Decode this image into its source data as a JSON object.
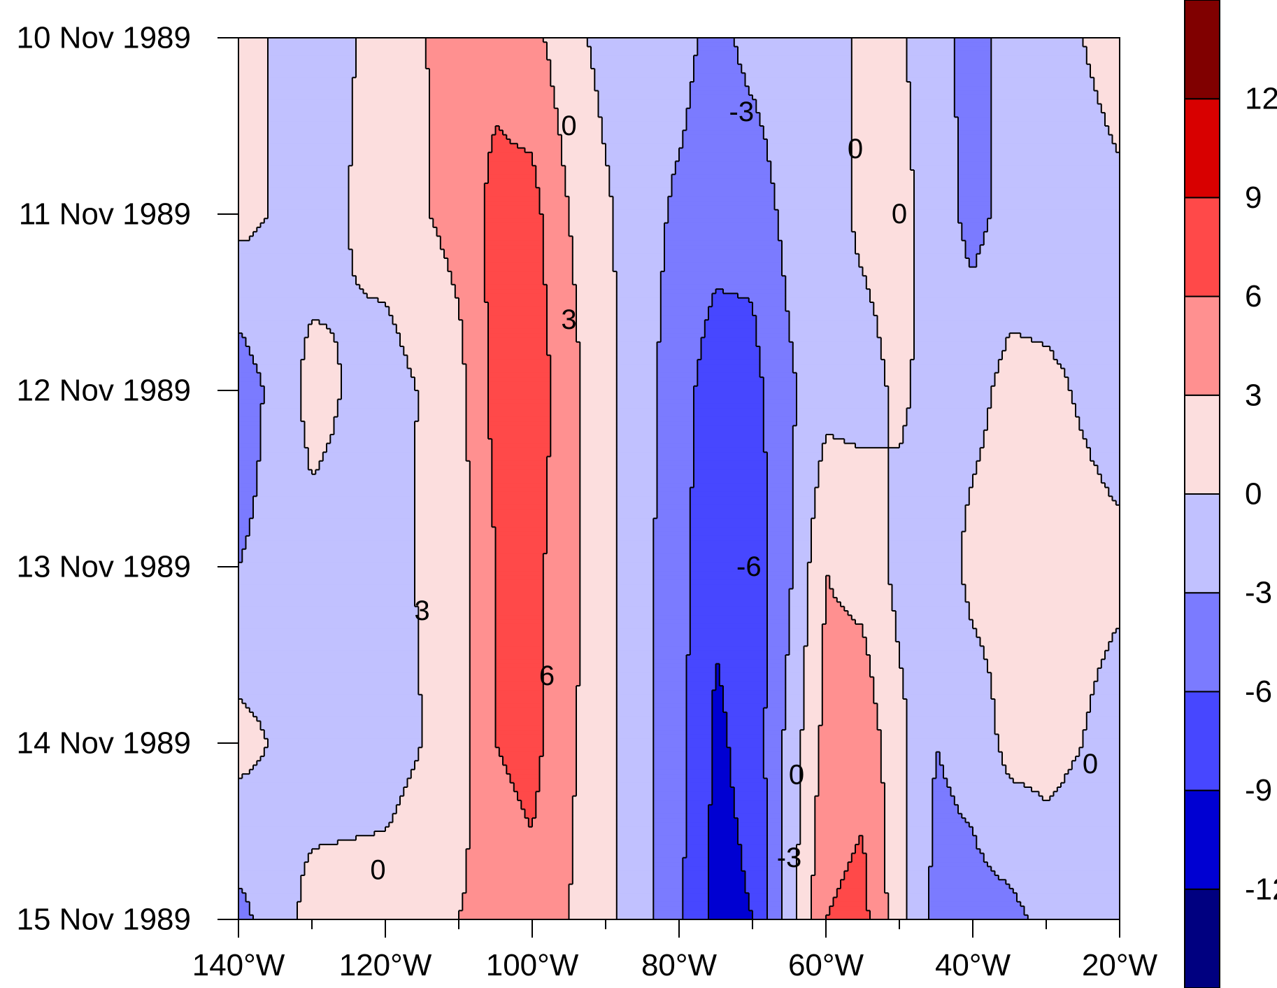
{
  "chart_data": {
    "type": "heatmap",
    "title": "",
    "xlabel": "",
    "ylabel": "",
    "x_axis": {
      "range": [
        -140,
        -20
      ],
      "ticks": [
        {
          "value": -140,
          "label": "140°W"
        },
        {
          "value": -120,
          "label": "120°W"
        },
        {
          "value": -100,
          "label": "100°W"
        },
        {
          "value": -80,
          "label": "80°W"
        },
        {
          "value": -60,
          "label": "60°W"
        },
        {
          "value": -40,
          "label": "40°W"
        },
        {
          "value": -20,
          "label": "20°W"
        }
      ],
      "minor_tick_step": 10
    },
    "y_axis": {
      "reversed": true,
      "ticks": [
        {
          "value": 0,
          "label": "10 Nov 1989"
        },
        {
          "value": 1,
          "label": "11 Nov 1989"
        },
        {
          "value": 2,
          "label": "12 Nov 1989"
        },
        {
          "value": 3,
          "label": "13 Nov 1989"
        },
        {
          "value": 4,
          "label": "14 Nov 1989"
        },
        {
          "value": 5,
          "label": "15 Nov 1989"
        }
      ]
    },
    "contour_interval": 3,
    "colorbar": {
      "levels": [
        -12,
        -9,
        -6,
        -3,
        0,
        3,
        6,
        9,
        12
      ],
      "labels": [
        "-12",
        "-9",
        "-6",
        "-3",
        "0",
        "3",
        "6",
        "9",
        "12"
      ],
      "colors": [
        "#000080",
        "#0000d2",
        "#4747ff",
        "#7b7bff",
        "#c1c1ff",
        "#fcdede",
        "#ff9090",
        "#ff4949",
        "#d80000",
        "#800000"
      ]
    },
    "grid": false,
    "legend": "colorbar-right",
    "contour_labels": [
      {
        "text": "0",
        "lon": -95,
        "time": 0.5
      },
      {
        "text": "-3",
        "lon": -71.5,
        "time": 0.42
      },
      {
        "text": "0",
        "lon": -56,
        "time": 0.63
      },
      {
        "text": "0",
        "lon": -50,
        "time": 1.0
      },
      {
        "text": "3",
        "lon": -95,
        "time": 1.6
      },
      {
        "text": "-6",
        "lon": -70.5,
        "time": 3.0
      },
      {
        "text": "3",
        "lon": -115,
        "time": 3.25
      },
      {
        "text": "6",
        "lon": -98,
        "time": 3.62
      },
      {
        "text": "0",
        "lon": -24,
        "time": 4.12
      },
      {
        "text": "0",
        "lon": -64,
        "time": 4.18
      },
      {
        "text": "-3",
        "lon": -65,
        "time": 4.65
      },
      {
        "text": "0",
        "lon": -121,
        "time": 4.72
      }
    ],
    "field": {
      "columns": [
        {
          "lon": -140,
          "values": [
            1,
            1,
            -5,
            -3,
            1,
            -4
          ]
        },
        {
          "lon": -130,
          "values": [
            -1.5,
            -1.5,
            1,
            -1,
            -1.5,
            1
          ]
        },
        {
          "lon": -120,
          "values": [
            1,
            1.5,
            -1.5,
            -1,
            -1.5,
            1.5
          ]
        },
        {
          "lon": -110,
          "values": [
            4.5,
            4,
            2,
            1.5,
            1.5,
            3
          ]
        },
        {
          "lon": -105,
          "values": [
            5,
            7,
            7,
            6,
            6,
            4
          ]
        },
        {
          "lon": -100,
          "values": [
            4,
            7,
            8,
            7,
            7,
            5
          ]
        },
        {
          "lon": -95,
          "values": [
            1,
            3,
            4,
            4,
            3.5,
            3
          ]
        },
        {
          "lon": -90,
          "values": [
            -1,
            0.5,
            1,
            1,
            1,
            1
          ]
        },
        {
          "lon": -85,
          "values": [
            -2,
            -2,
            -2,
            -2,
            -2,
            -2
          ]
        },
        {
          "lon": -80,
          "values": [
            -2,
            -3.5,
            -4.5,
            -5,
            -5,
            -5.5
          ]
        },
        {
          "lon": -75,
          "values": [
            -4,
            -4.5,
            -8,
            -8.5,
            -9.5,
            -10
          ]
        },
        {
          "lon": -70,
          "values": [
            -2,
            -5,
            -7,
            -8,
            -8,
            -9
          ]
        },
        {
          "lon": -65,
          "values": [
            -1,
            -2,
            -3.5,
            -3.5,
            -2,
            -1.5
          ]
        },
        {
          "lon": -60,
          "values": [
            -1,
            -1,
            -1,
            3,
            4,
            6
          ]
        },
        {
          "lon": -55,
          "values": [
            0.5,
            0.5,
            -1,
            2,
            5,
            7
          ]
        },
        {
          "lon": -50,
          "values": [
            0.5,
            1,
            0.5,
            -1,
            1,
            1
          ]
        },
        {
          "lon": -45,
          "values": [
            -2,
            -1.5,
            -1,
            -2,
            -3,
            -4
          ]
        },
        {
          "lon": -40,
          "values": [
            -4,
            -4,
            -1,
            1,
            -2,
            -4
          ]
        },
        {
          "lon": -35,
          "values": [
            -2,
            -2,
            1,
            1,
            1,
            -4
          ]
        },
        {
          "lon": -30,
          "values": [
            -1,
            -1.5,
            0.5,
            1,
            1,
            -2
          ]
        },
        {
          "lon": -20,
          "values": [
            1,
            -0.5,
            -1,
            0.5,
            -1,
            -2
          ]
        }
      ]
    }
  }
}
